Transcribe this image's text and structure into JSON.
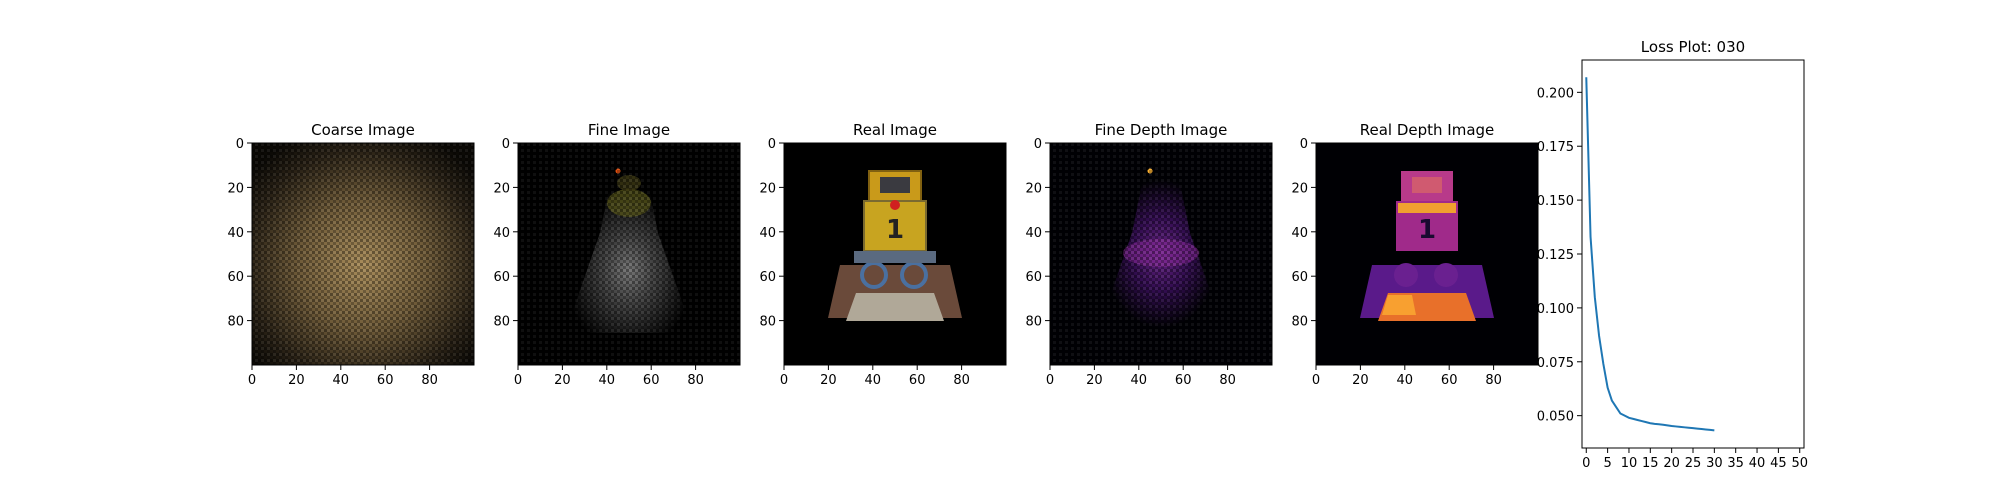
{
  "figure": {
    "panels": [
      {
        "title": "Coarse Image",
        "kind": "coarse",
        "xticks": [
          "0",
          "20",
          "40",
          "60",
          "80"
        ],
        "yticks": [
          "0",
          "20",
          "40",
          "60",
          "80"
        ]
      },
      {
        "title": "Fine Image",
        "kind": "fine",
        "xticks": [
          "0",
          "20",
          "40",
          "60",
          "80"
        ],
        "yticks": [
          "0",
          "20",
          "40",
          "60",
          "80"
        ]
      },
      {
        "title": "Real Image",
        "kind": "real",
        "xticks": [
          "0",
          "20",
          "40",
          "60",
          "80"
        ],
        "yticks": [
          "0",
          "20",
          "40",
          "60",
          "80"
        ]
      },
      {
        "title": "Fine Depth Image",
        "kind": "finedepth",
        "xticks": [
          "0",
          "20",
          "40",
          "60",
          "80"
        ],
        "yticks": [
          "0",
          "20",
          "40",
          "60",
          "80"
        ]
      },
      {
        "title": "Real Depth Image",
        "kind": "realdepth",
        "xticks": [
          "0",
          "20",
          "40",
          "60",
          "80"
        ],
        "yticks": [
          "0",
          "20",
          "40",
          "60",
          "80"
        ]
      }
    ],
    "image_extent": [
      0,
      100
    ],
    "colors": {
      "line": "#1f77b4",
      "axis": "#000000",
      "background": "#ffffff"
    }
  },
  "chart_data": {
    "type": "line",
    "title": "Loss Plot: 030",
    "xlabel": "",
    "ylabel": "",
    "xlim": [
      -1,
      51
    ],
    "ylim": [
      0.035,
      0.215
    ],
    "xticks": [
      0,
      5,
      10,
      15,
      20,
      25,
      30,
      35,
      40,
      45,
      50
    ],
    "yticks": [
      0.05,
      0.075,
      0.1,
      0.125,
      0.15,
      0.175,
      0.2
    ],
    "ytick_labels": [
      "0.050",
      "0.075",
      "0.100",
      "0.125",
      "0.150",
      "0.175",
      "0.200"
    ],
    "grid": false,
    "series": [
      {
        "x": [
          0,
          1,
          2,
          3,
          4,
          5,
          6,
          7,
          8,
          9,
          10,
          11,
          12,
          13,
          14,
          15,
          16,
          17,
          18,
          19,
          20,
          21,
          22,
          23,
          24,
          25,
          26,
          27,
          28,
          29,
          30
        ],
        "values": [
          0.207,
          0.133,
          0.105,
          0.087,
          0.074,
          0.063,
          0.057,
          0.054,
          0.051,
          0.05,
          0.049,
          0.0485,
          0.048,
          0.0475,
          0.047,
          0.0465,
          0.0462,
          0.046,
          0.0458,
          0.0455,
          0.0452,
          0.045,
          0.0448,
          0.0446,
          0.0444,
          0.0442,
          0.044,
          0.0438,
          0.0436,
          0.0434,
          0.0432
        ]
      }
    ]
  }
}
